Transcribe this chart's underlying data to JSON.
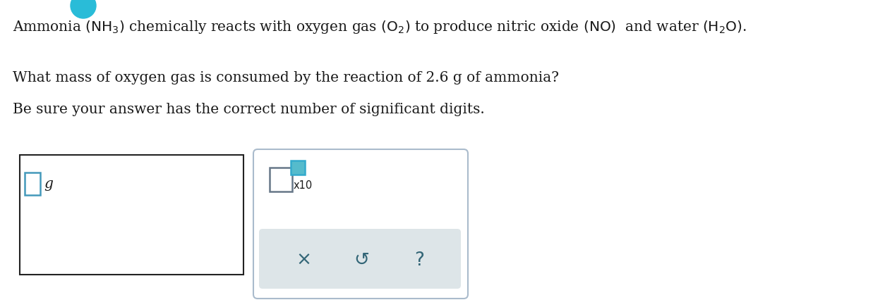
{
  "bg_color": "#ffffff",
  "text_color": "#1a1a1a",
  "text_size": 14.5,
  "line1_math": "Ammonia $\\left(\\mathrm{NH_3}\\right)$ chemically reacts with oxygen gas $\\left(\\mathrm{O_2}\\right)$ to produce nitric oxide $\\left(\\mathrm{NO}\\right)$  and water $\\left(\\mathrm{H_2O}\\right)$.",
  "line2": "What mass of oxygen gas is consumed by the reaction of 2.6 g of ammonia?",
  "line3": "Be sure your answer has the correct number of significant digits.",
  "unit_label": "g",
  "box1_edge": "#222222",
  "input_box_color": "#4499bb",
  "box2_edge": "#aabbcc",
  "box2_bg": "#ffffff",
  "exp_main_edge": "#667788",
  "exp_super_fill": "#55bbcc",
  "exp_super_edge": "#33aacc",
  "btn_area_color": "#dde5e8",
  "btn_text_color": "#336677",
  "x10_text": "x10",
  "btn1": "×",
  "btn2": "↺",
  "btn3": "?"
}
